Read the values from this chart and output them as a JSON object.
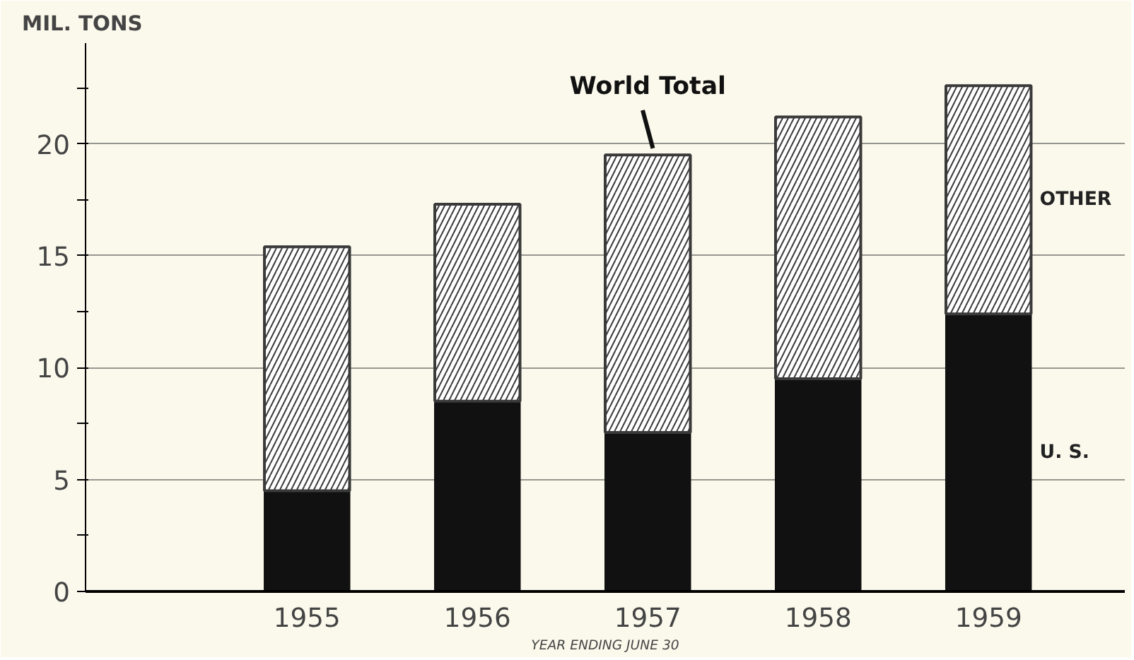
{
  "chart_data": {
    "type": "bar",
    "stacked": true,
    "ylabel": "MIL. TONS",
    "xlabel": "YEAR ENDING JUNE 30",
    "categories": [
      "1955",
      "1956",
      "1957",
      "1958",
      "1959"
    ],
    "series": [
      {
        "name": "U. S.",
        "color": "#111111",
        "values": [
          4.5,
          8.5,
          7.1,
          9.5,
          12.4
        ]
      },
      {
        "name": "OTHER",
        "color": "#3a3a3a",
        "values": [
          10.9,
          8.8,
          12.4,
          11.7,
          10.2
        ]
      }
    ],
    "ylim": [
      0,
      24.5
    ],
    "yticks": [
      0,
      {
        "value": 2.5,
        "label": null
      },
      5,
      {
        "value": 7.5,
        "label": null
      },
      10,
      {
        "value": 12.5,
        "label": null
      },
      15,
      {
        "value": 17.5,
        "label": null
      },
      20,
      {
        "value": 22.5,
        "label": null
      }
    ],
    "grid": "y",
    "annotations": [
      {
        "text": "World Total",
        "x": "1957",
        "y": 19.5
      }
    ]
  }
}
